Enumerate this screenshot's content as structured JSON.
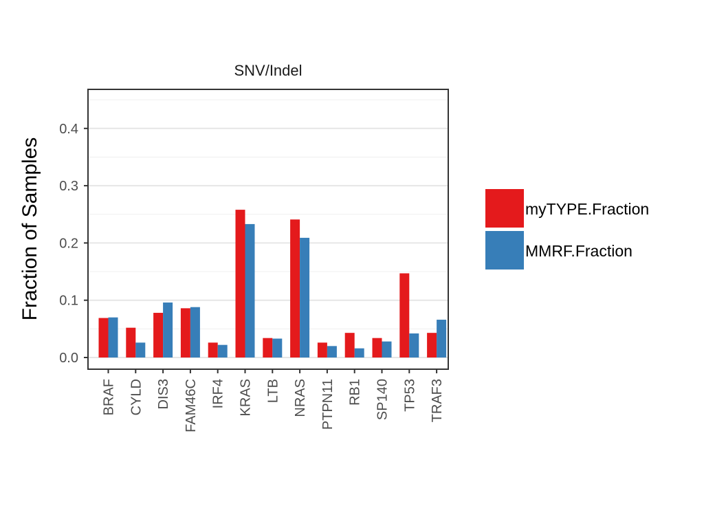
{
  "chart_data": {
    "type": "bar",
    "title": "SNV/Indel",
    "xlabel": "",
    "ylabel": "Fraction of Samples",
    "ylim": [
      0,
      0.47
    ],
    "yticks": [
      "0.0",
      "0.1",
      "0.2",
      "0.3",
      "0.4"
    ],
    "ytick_values": [
      0,
      0.1,
      0.2,
      0.3,
      0.4
    ],
    "grid": true,
    "legend_position": "right",
    "categories": [
      "BRAF",
      "CYLD",
      "DIS3",
      "FAM46C",
      "IRF4",
      "KRAS",
      "LTB",
      "NRAS",
      "PTPN11",
      "RB1",
      "SP140",
      "TP53",
      "TRAF3"
    ],
    "series": [
      {
        "name": "myTYPE.Fraction",
        "color": "#e41a1c",
        "values": [
          0.069,
          0.052,
          0.078,
          0.086,
          0.026,
          0.258,
          0.034,
          0.241,
          0.026,
          0.043,
          0.034,
          0.147,
          0.043
        ]
      },
      {
        "name": "MMRF.Fraction",
        "color": "#377eb8",
        "values": [
          0.07,
          0.026,
          0.096,
          0.088,
          0.022,
          0.233,
          0.033,
          0.209,
          0.02,
          0.016,
          0.028,
          0.042,
          0.066
        ]
      }
    ]
  }
}
